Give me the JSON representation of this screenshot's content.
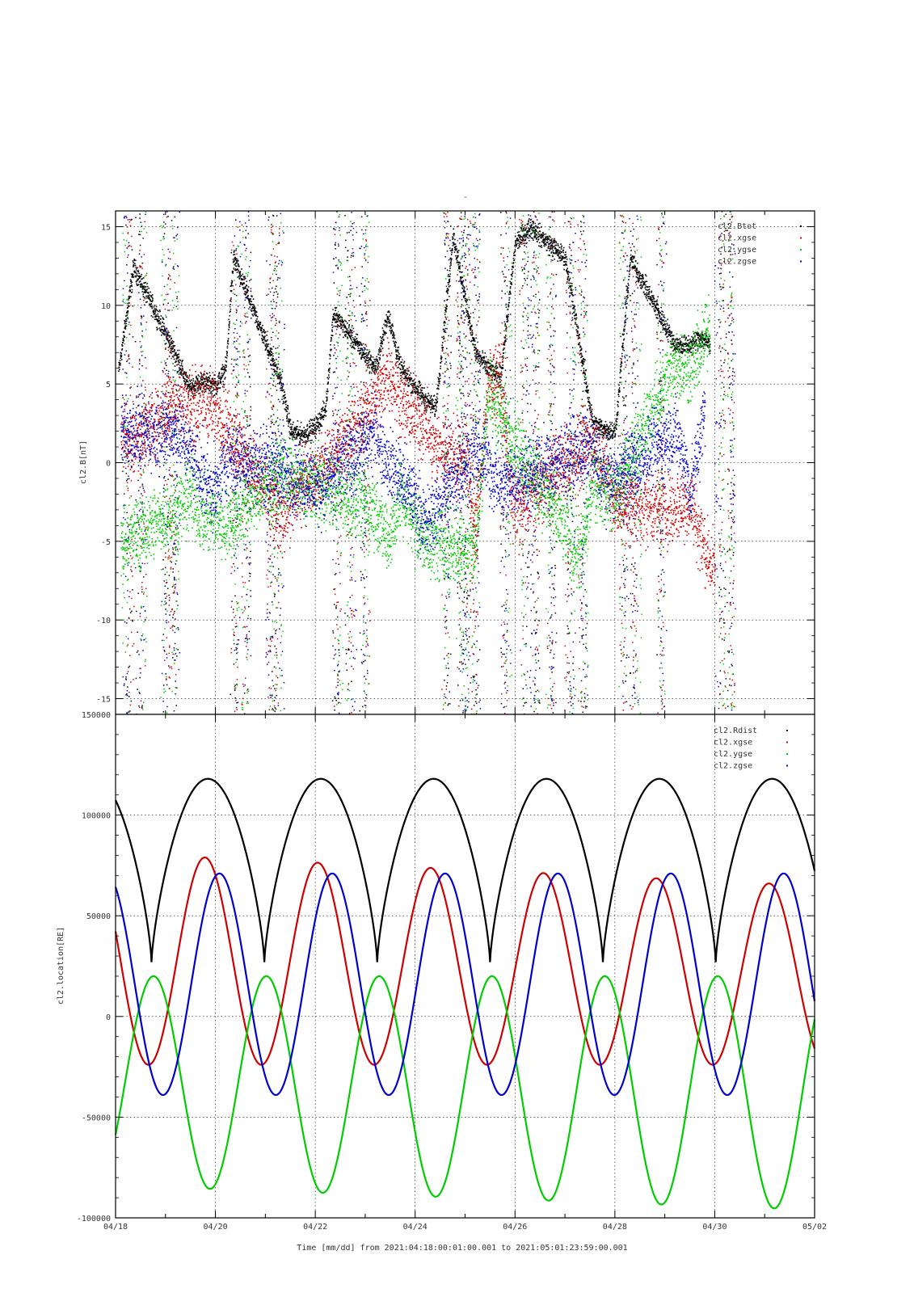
{
  "chart_data": [
    {
      "type": "scatter",
      "title": "-",
      "ylabel": "cl2.B[nT]",
      "ylim": [
        -16,
        16
      ],
      "yticks": [
        -15,
        -10,
        -5,
        0,
        5,
        10,
        15
      ],
      "xlim": [
        "04/18",
        "05/02"
      ],
      "grid": true,
      "legend_position": "top-right",
      "series": [
        {
          "name": "cl2.Btot",
          "color": "#000000",
          "points": [
            [
              0.05,
              5.8
            ],
            [
              0.35,
              12.5
            ],
            [
              1.25,
              6.5
            ],
            [
              1.45,
              4.8
            ],
            [
              1.75,
              5.2
            ],
            [
              2.0,
              4.9
            ],
            [
              2.2,
              6.0
            ],
            [
              2.35,
              13.0
            ],
            [
              3.3,
              5.2
            ],
            [
              3.5,
              2.0
            ],
            [
              3.75,
              1.8
            ],
            [
              4.0,
              2.3
            ],
            [
              4.2,
              3.5
            ],
            [
              4.35,
              9.5
            ],
            [
              5.2,
              6.0
            ],
            [
              5.45,
              9.5
            ],
            [
              5.7,
              6.0
            ],
            [
              5.95,
              5.0
            ],
            [
              6.2,
              4.0
            ],
            [
              6.4,
              3.5
            ],
            [
              6.55,
              8.0
            ],
            [
              6.75,
              14.5
            ],
            [
              7.2,
              7.0
            ],
            [
              7.45,
              6.0
            ],
            [
              7.7,
              5.5
            ],
            [
              8.0,
              14.0
            ],
            [
              8.3,
              15.0
            ],
            [
              9.0,
              13.0
            ],
            [
              9.55,
              2.5
            ],
            [
              9.75,
              2.2
            ],
            [
              10.0,
              2.0
            ],
            [
              10.3,
              13.0
            ],
            [
              11.2,
              7.5
            ],
            [
              11.5,
              7.5
            ],
            [
              11.7,
              8.0
            ],
            [
              11.9,
              7.5
            ]
          ]
        },
        {
          "name": "cl2.xgse",
          "color": "#d40000",
          "points": [
            [
              0.1,
              2.0
            ],
            [
              0.35,
              1.5
            ],
            [
              1.25,
              4.0
            ],
            [
              1.5,
              3.5
            ],
            [
              1.75,
              4.0
            ],
            [
              2.0,
              3.5
            ],
            [
              2.2,
              2.5
            ],
            [
              3.3,
              -3.5
            ],
            [
              3.5,
              -2.5
            ],
            [
              3.8,
              -1.0
            ],
            [
              4.1,
              -0.5
            ],
            [
              5.2,
              4.0
            ],
            [
              5.45,
              6.0
            ],
            [
              5.7,
              4.0
            ],
            [
              5.95,
              3.0
            ],
            [
              6.2,
              2.5
            ],
            [
              6.35,
              1.0
            ],
            [
              7.0,
              0.5
            ],
            [
              7.2,
              -4.5
            ],
            [
              7.45,
              5.0
            ],
            [
              7.7,
              5.5
            ],
            [
              7.95,
              -3.0
            ],
            [
              9.5,
              1.5
            ],
            [
              9.75,
              0.0
            ],
            [
              10.0,
              -2.5
            ],
            [
              11.1,
              -3.0
            ],
            [
              11.5,
              -2.5
            ],
            [
              11.8,
              -5.5
            ],
            [
              12.0,
              -7.0
            ]
          ]
        },
        {
          "name": "cl2.ygse",
          "color": "#00cc00",
          "points": [
            [
              0.1,
              -5.0
            ],
            [
              1.25,
              -3.0
            ],
            [
              1.5,
              -2.0
            ],
            [
              1.75,
              -3.5
            ],
            [
              2.0,
              -3.5
            ],
            [
              2.2,
              -4.0
            ],
            [
              3.3,
              -0.5
            ],
            [
              3.5,
              -1.0
            ],
            [
              3.8,
              -1.5
            ],
            [
              4.05,
              -1.5
            ],
            [
              5.2,
              -3.0
            ],
            [
              5.45,
              -5.0
            ],
            [
              5.7,
              -2.0
            ],
            [
              5.95,
              -3.5
            ],
            [
              6.2,
              -5.0
            ],
            [
              7.2,
              -5.5
            ],
            [
              7.45,
              4.5
            ],
            [
              7.7,
              3.0
            ],
            [
              9.3,
              -6.0
            ],
            [
              9.55,
              -1.0
            ],
            [
              9.75,
              -1.5
            ],
            [
              10.0,
              -2.0
            ],
            [
              11.2,
              6.5
            ],
            [
              11.5,
              6.0
            ],
            [
              11.75,
              7.5
            ],
            [
              11.9,
              9.0
            ]
          ]
        },
        {
          "name": "cl2.zgse",
          "color": "#0000cc",
          "points": [
            [
              0.1,
              2.0
            ],
            [
              1.25,
              2.0
            ],
            [
              1.5,
              0.5
            ],
            [
              1.75,
              -1.0
            ],
            [
              2.0,
              -2.0
            ],
            [
              2.2,
              0.5
            ],
            [
              3.3,
              -0.5
            ],
            [
              3.5,
              -1.0
            ],
            [
              3.8,
              -1.0
            ],
            [
              4.05,
              -1.5
            ],
            [
              5.2,
              2.0
            ],
            [
              5.45,
              0.0
            ],
            [
              5.7,
              -1.0
            ],
            [
              5.95,
              -2.0
            ],
            [
              6.2,
              -4.0
            ],
            [
              7.2,
              1.0
            ],
            [
              7.45,
              0.0
            ],
            [
              7.7,
              -1.5
            ],
            [
              9.5,
              1.0
            ],
            [
              9.75,
              -1.0
            ],
            [
              10.0,
              -1.0
            ],
            [
              11.2,
              2.0
            ],
            [
              11.4,
              0.0
            ],
            [
              11.5,
              -2.0
            ],
            [
              11.8,
              3.5
            ]
          ]
        }
      ]
    },
    {
      "type": "line",
      "ylabel": "cl2.location[RE]",
      "xlabel": "Time [mm/dd]  from 2021:04:18:00:01:00.001  to  2021:05:01:23:59:00.001",
      "ylim": [
        -100000,
        150000
      ],
      "yticks": [
        -100000,
        -50000,
        0,
        50000,
        100000,
        150000
      ],
      "xticks": [
        "04/18",
        "04/20",
        "04/22",
        "04/24",
        "04/26",
        "04/28",
        "04/30",
        "05/02"
      ],
      "xlim": [
        "04/18",
        "05/02"
      ],
      "grid": true,
      "legend_position": "top-right",
      "orbit_period_days": 2.26,
      "series": [
        {
          "name": "cl2.Rdist",
          "color": "#000000",
          "apogee": 118000,
          "perigee": 27000,
          "first_perigee_day": 0.72
        },
        {
          "name": "cl2.xgse",
          "color": "#cc0000",
          "max_start": 81000,
          "max_end": 65000,
          "min": -24000,
          "first_min_day": 0.66
        },
        {
          "name": "cl2.ygse",
          "color": "#00cc00",
          "max": 20000,
          "min_start": -84000,
          "min_end": -96000,
          "first_max_day": 0.76
        },
        {
          "name": "cl2.zgse",
          "color": "#0000cc",
          "max": 71000,
          "min": -39000,
          "first_min_day": 0.95
        }
      ]
    }
  ]
}
